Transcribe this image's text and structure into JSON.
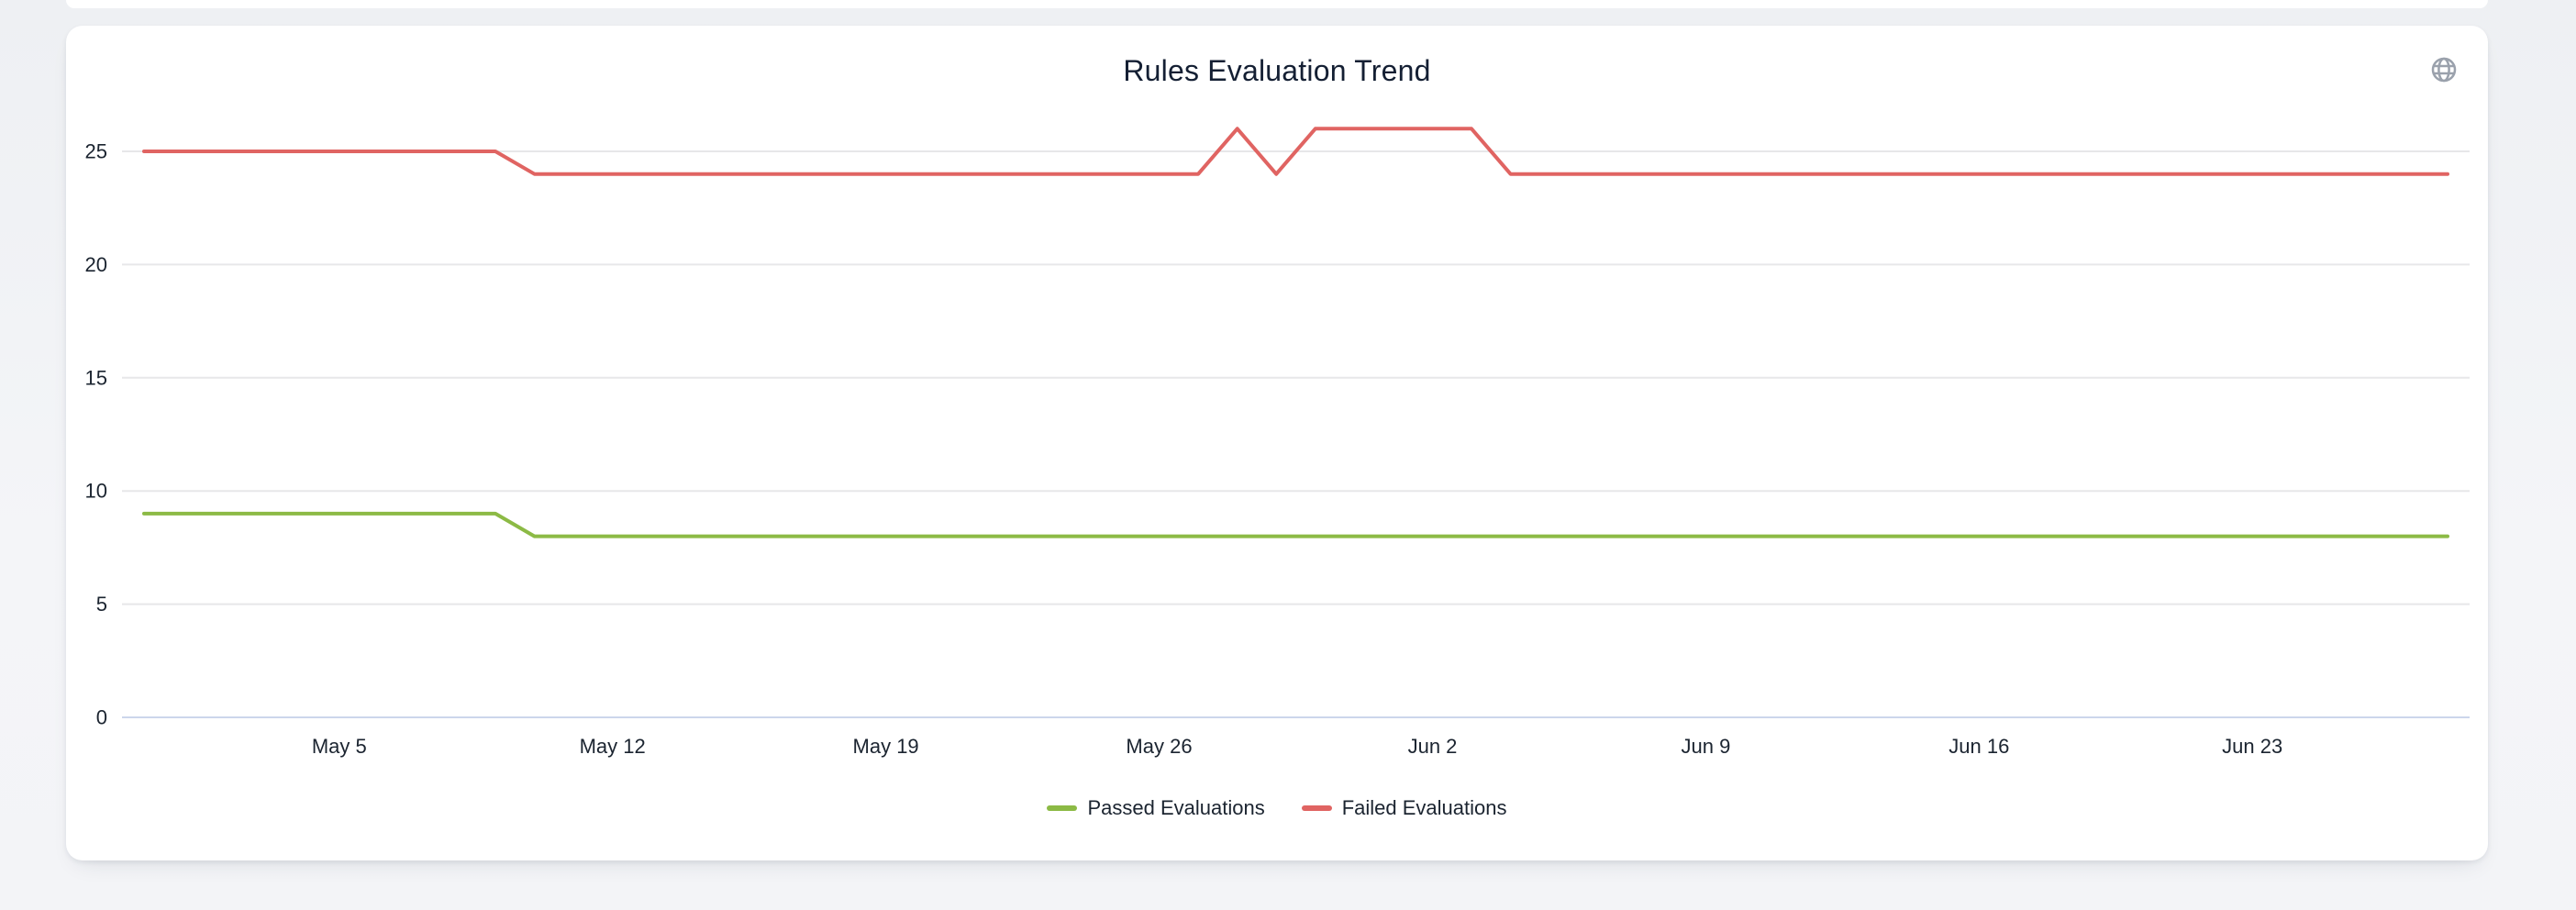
{
  "card": {
    "title": "Rules Evaluation Trend"
  },
  "icons": {
    "top_right": "globe-icon"
  },
  "colors": {
    "passed": "#8cba45",
    "failed": "#e06462",
    "grid": "#e7e7e9",
    "axis_line": "#ccd6eb",
    "text": "#1b2430",
    "icon": "#9aa1ac",
    "card_bg": "#ffffff",
    "page_bg": "#f2f3f6"
  },
  "chart_data": {
    "type": "line",
    "title": "Rules Evaluation Trend",
    "n_points": 60,
    "x_tick_labels": [
      "May 5",
      "May 12",
      "May 19",
      "May 26",
      "Jun 2",
      "Jun 9",
      "Jun 16",
      "Jun 23"
    ],
    "x_tick_indices": [
      5,
      12,
      19,
      26,
      33,
      40,
      47,
      54
    ],
    "y_ticks": [
      0,
      5,
      10,
      15,
      20,
      25
    ],
    "ylim": [
      0,
      26
    ],
    "grid": true,
    "legend_position": "bottom",
    "series": [
      {
        "name": "Passed Evaluations",
        "key": "passed",
        "color": "#8cba45",
        "values": [
          9,
          9,
          9,
          9,
          9,
          9,
          9,
          9,
          9,
          9,
          8,
          8,
          8,
          8,
          8,
          8,
          8,
          8,
          8,
          8,
          8,
          8,
          8,
          8,
          8,
          8,
          8,
          8,
          8,
          8,
          8,
          8,
          8,
          8,
          8,
          8,
          8,
          8,
          8,
          8,
          8,
          8,
          8,
          8,
          8,
          8,
          8,
          8,
          8,
          8,
          8,
          8,
          8,
          8,
          8,
          8,
          8,
          8,
          8,
          8
        ]
      },
      {
        "name": "Failed Evaluations",
        "key": "failed",
        "color": "#e06462",
        "values": [
          25,
          25,
          25,
          25,
          25,
          25,
          25,
          25,
          25,
          25,
          24,
          24,
          24,
          24,
          24,
          24,
          24,
          24,
          24,
          24,
          24,
          24,
          24,
          24,
          24,
          24,
          24,
          24,
          26,
          24,
          26,
          26,
          26,
          26,
          26,
          24,
          24,
          24,
          24,
          24,
          24,
          24,
          24,
          24,
          24,
          24,
          24,
          24,
          24,
          24,
          24,
          24,
          24,
          24,
          24,
          24,
          24,
          24,
          24,
          24
        ]
      }
    ]
  }
}
